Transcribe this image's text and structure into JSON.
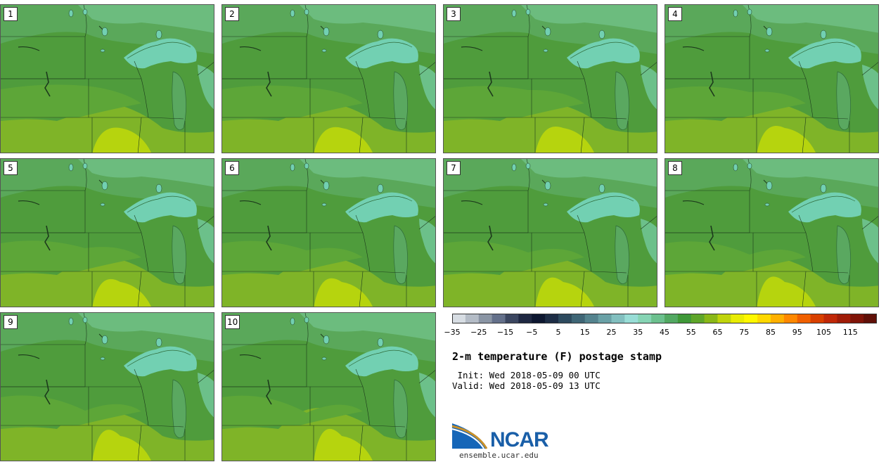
{
  "panels": [
    {
      "label": "1"
    },
    {
      "label": "2"
    },
    {
      "label": "3"
    },
    {
      "label": "4"
    },
    {
      "label": "5"
    },
    {
      "label": "6"
    },
    {
      "label": "7"
    },
    {
      "label": "8"
    },
    {
      "label": "9"
    },
    {
      "label": "10"
    }
  ],
  "colorbar": {
    "ticks": [
      "−35",
      "−25",
      "−15",
      "−5",
      "5",
      "15",
      "25",
      "35",
      "45",
      "55",
      "65",
      "75",
      "85",
      "95",
      "105",
      "115"
    ],
    "colors": [
      "#d7dde3",
      "#b4bcc6",
      "#8a95a4",
      "#64708a",
      "#3b4660",
      "#1f2842",
      "#0d1730",
      "#1d2d45",
      "#2d4a5e",
      "#3f6676",
      "#54838e",
      "#6aa1a6",
      "#82bfbf",
      "#98ddd6",
      "#86d4b4",
      "#6cc08e",
      "#52a862",
      "#3f9838",
      "#5fa62a",
      "#8ab818",
      "#c0d40c",
      "#e8ec04",
      "#fff800",
      "#ffd800",
      "#ffb000",
      "#ff8800",
      "#f06000",
      "#d84000",
      "#c02808",
      "#a01c08",
      "#801408",
      "#601008"
    ]
  },
  "title": "2-m temperature (F) postage stamp",
  "init": " Init: Wed 2018-05-09 00 UTC",
  "valid": "Valid: Wed 2018-05-09 13 UTC",
  "logo": {
    "text": "NCAR",
    "site": "ensemble.ucar.edu"
  },
  "colors": {
    "ocean": "#72d0b2",
    "warm": "#b6d40e",
    "mid": "#4a9e38",
    "cool": "#62b26a",
    "dark": "#3a8c30"
  }
}
